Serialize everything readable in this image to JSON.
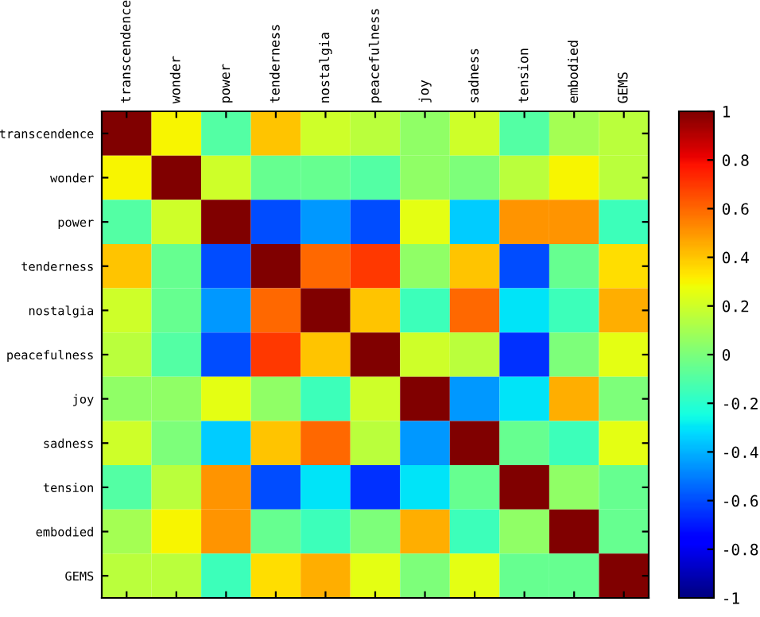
{
  "chart_data": {
    "type": "heatmap",
    "categories": [
      "transcendence",
      "wonder",
      "power",
      "tenderness",
      "nostalgia",
      "peacefulness",
      "joy",
      "sadness",
      "tension",
      "embodied",
      "GEMS"
    ],
    "y_categories": [
      "transcendence",
      "wonder",
      "power",
      "tenderness",
      "nostalgia",
      "peacefulness",
      "joy",
      "sadness",
      "tension",
      "embodied",
      "GEMS"
    ],
    "cells": [
      [
        1,
        0.3,
        -0.1,
        0.4,
        0.2,
        0.15,
        0.05,
        0.2,
        -0.1,
        0.1,
        0.15
      ],
      [
        0.3,
        1,
        0.2,
        -0.05,
        -0.05,
        -0.1,
        0.05,
        0,
        0.15,
        0.3,
        0.15
      ],
      [
        -0.1,
        0.2,
        1,
        -0.6,
        -0.45,
        -0.6,
        0.25,
        -0.35,
        0.5,
        0.5,
        -0.15
      ],
      [
        0.4,
        -0.05,
        -0.6,
        1,
        0.6,
        0.7,
        0.05,
        0.4,
        -0.6,
        -0.05,
        0.35
      ],
      [
        0.2,
        -0.05,
        -0.45,
        0.6,
        1,
        0.4,
        -0.15,
        0.6,
        -0.3,
        -0.15,
        0.45
      ],
      [
        0.15,
        -0.1,
        -0.6,
        0.7,
        0.4,
        1,
        0.2,
        0.15,
        -0.65,
        0,
        0.25
      ],
      [
        0.05,
        0.05,
        0.25,
        0.05,
        -0.15,
        0.2,
        1,
        -0.45,
        -0.3,
        0.45,
        0
      ],
      [
        0.2,
        0,
        -0.35,
        0.4,
        0.6,
        0.15,
        -0.45,
        1,
        -0.05,
        -0.15,
        0.25
      ],
      [
        -0.1,
        0.15,
        0.5,
        -0.6,
        -0.3,
        -0.65,
        -0.3,
        -0.05,
        1,
        0.05,
        -0.05
      ],
      [
        0.1,
        0.3,
        0.5,
        -0.05,
        -0.15,
        0,
        0.45,
        -0.15,
        0.05,
        1,
        -0.05
      ],
      [
        0.15,
        0.15,
        -0.15,
        0.35,
        0.45,
        0.25,
        0,
        0.25,
        -0.05,
        -0.05,
        1
      ]
    ],
    "clim": [
      -1,
      1
    ],
    "cticks": [
      -1,
      -0.8,
      -0.6,
      -0.4,
      -0.2,
      0,
      0.2,
      0.4,
      0.6,
      0.8,
      1
    ]
  }
}
